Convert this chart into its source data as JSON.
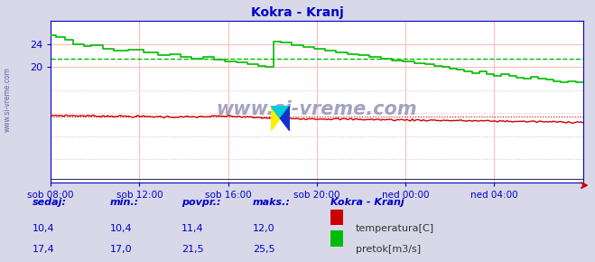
{
  "title": "Kokra - Kranj",
  "title_color": "#0000cc",
  "bg_color": "#d8d8e8",
  "plot_bg_color": "#ffffff",
  "grid_color_main": "#ffbbbb",
  "grid_color_lower": "#cccccc",
  "watermark": "www.si-vreme.com",
  "watermark_color": "#9999bb",
  "axis_color": "#0000cc",
  "x_labels": [
    "sob 08:00",
    "sob 12:00",
    "sob 16:00",
    "sob 20:00",
    "ned 00:00",
    "ned 04:00"
  ],
  "x_ticks_norm": [
    0.0,
    0.1667,
    0.3333,
    0.5,
    0.6667,
    0.8333
  ],
  "ylim": [
    0,
    28
  ],
  "yticks": [
    20,
    24
  ],
  "avg_flow": 21.5,
  "avg_temp": 11.4,
  "temp_color": "#cc0000",
  "flow_color": "#00bb00",
  "n_points": 288,
  "legend_title": "Kokra - Kranj",
  "legend_color": "#0000cc",
  "sedaj_label": "sedaj:",
  "min_label": "min.:",
  "povpr_label": "povpr.:",
  "maks_label": "maks.:",
  "temp_sedaj": "10,4",
  "temp_min": "10,4",
  "temp_povpr": "11,4",
  "temp_maks": "12,0",
  "flow_sedaj": "17,4",
  "flow_min": "17,0",
  "flow_povpr": "21,5",
  "flow_maks": "25,5",
  "label_temp": "temperatura[C]",
  "label_flow": "pretok[m3/s]",
  "label_color": "#333333",
  "side_label": "www.si-vreme.com",
  "side_label_color": "#6666aa"
}
